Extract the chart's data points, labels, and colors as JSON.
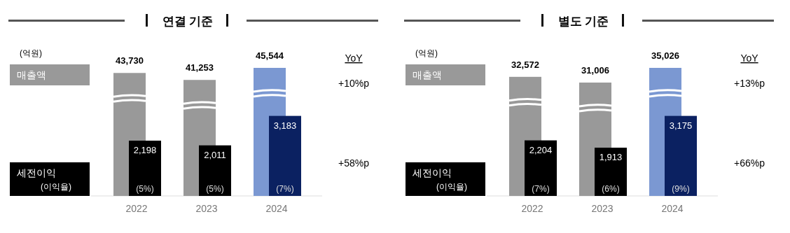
{
  "chart_data": [
    {
      "type": "bar",
      "title": "연결 기준",
      "categories": [
        "2022",
        "2023",
        "2024"
      ],
      "series": [
        {
          "name": "매출액",
          "color": "#999999",
          "colors": [
            "#999999",
            "#999999",
            "#7b98d2"
          ],
          "values": [
            43730,
            41253,
            45544
          ],
          "value_labels": [
            "43,730",
            "41,253",
            "45,544"
          ]
        },
        {
          "name": "세전이익 (이익율)",
          "color": "#000000",
          "colors": [
            "#000000",
            "#000000",
            "#0b2161"
          ],
          "values": [
            2198,
            2011,
            3183
          ],
          "value_labels": [
            "2,198",
            "2,011",
            "3,183"
          ],
          "axis": "y2"
        }
      ],
      "legend": "left",
      "annotations": [
        "(억원)",
        "YoY",
        "+10%p",
        "+58%p",
        "(5%)",
        "(5%)",
        "(7%)"
      ]
    },
    {
      "type": "bar",
      "title": "별도 기준",
      "categories": [
        "2022",
        "2023",
        "2024"
      ],
      "series": [
        {
          "name": "매출액",
          "color": "#999999",
          "colors": [
            "#999999",
            "#999999",
            "#7b98d2"
          ],
          "values": [
            32572,
            31006,
            35026
          ],
          "value_labels": [
            "32,572",
            "31,006",
            "35,026"
          ]
        },
        {
          "name": "세전이익 (이익율)",
          "color": "#000000",
          "colors": [
            "#000000",
            "#000000",
            "#0b2161"
          ],
          "values": [
            2204,
            1913,
            3175
          ],
          "value_labels": [
            "2,204",
            "1,913",
            "3,175"
          ],
          "axis": "y2"
        }
      ],
      "legend": "left",
      "annotations": [
        "(억원)",
        "YoY",
        "+13%p",
        "+66%p",
        "(7%)",
        "(6%)",
        "(9%)"
      ]
    }
  ]
}
